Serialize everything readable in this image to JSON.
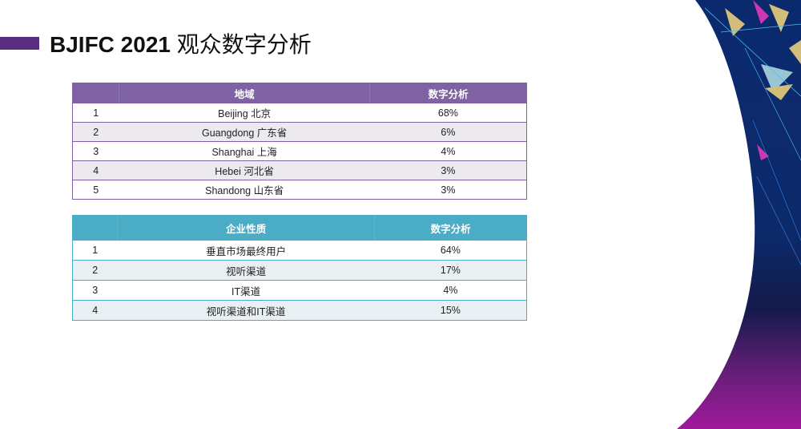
{
  "slide": {
    "title_latin": "BJIFC 2021",
    "title_cjk": "观众数字分析",
    "accent_color": "#5b2d82"
  },
  "region_table": {
    "headers": [
      "",
      "地域",
      "数字分析"
    ],
    "rows": [
      [
        "1",
        "Beijing 北京",
        "68%"
      ],
      [
        "2",
        "Guangdong  广东省",
        "6%"
      ],
      [
        "3",
        "Shanghai  上海",
        "4%"
      ],
      [
        "4",
        "Hebei  河北省",
        "3%"
      ],
      [
        "5",
        "Shandong  山东省",
        "3%"
      ]
    ],
    "header_color": "#7e62a3"
  },
  "company_table": {
    "headers": [
      "",
      "企业性质",
      "数字分析"
    ],
    "rows": [
      [
        "1",
        "垂直市场最终用户",
        "64%"
      ],
      [
        "2",
        "视听渠道",
        "17%"
      ],
      [
        "3",
        "IT渠道",
        "4%"
      ],
      [
        "4",
        "视听渠道和IT渠道",
        "15%"
      ]
    ],
    "header_color": "#4bacc6"
  }
}
